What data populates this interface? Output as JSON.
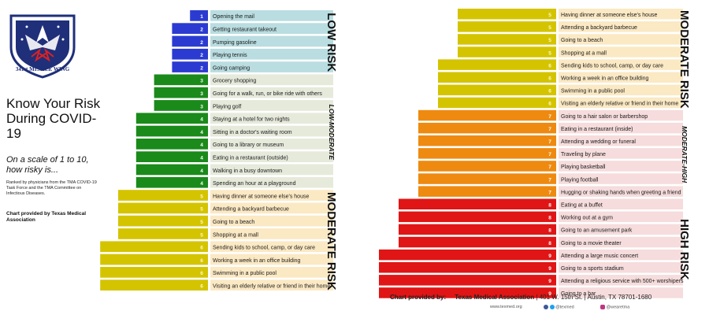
{
  "logo": {
    "text": "341st MISSILE WING",
    "icon": "shield-eagle-emblem"
  },
  "heading": {
    "title": "Know Your Risk During COVID-19",
    "subtitle": "On a scale of 1 to 10, how risky is...",
    "note": "Ranked by physicians from the TMA COVID-19 Task Force and the TMA Committee on Infectious Diseases.",
    "credit": "Chart provided by Texas Medical Association"
  },
  "footer": {
    "provided_by": "Chart provided by:",
    "org": "Texas Medical Association",
    "address": "| 401 W. 15th St. | Austin, TX 78701-1680",
    "website": "www.texmed.org",
    "twitter": "@texmed",
    "instagram": "@wearetma"
  },
  "colors": {
    "1": "#2b3bd1",
    "2": "#2b3bd1",
    "3": "#1a8a1a",
    "4": "#1a8a1a",
    "5": "#d4c400",
    "6": "#d4c400",
    "7": "#ee8a10",
    "8": "#e01515",
    "9": "#e01515"
  },
  "chart_data": [
    {
      "type": "bar",
      "panel": "left",
      "xlim": [
        0,
        10
      ],
      "bands": [
        {
          "name": "LOW RISK",
          "fill": "#b9dde0"
        },
        {
          "name": "LOW-MODERATE",
          "fill": "#e6eadb"
        },
        {
          "name": "MODERATE RISK",
          "fill": "#fbe9c4"
        }
      ],
      "categories": [
        "Opening the mail",
        "Getting restaurant takeout",
        "Pumping gasoline",
        "Playing tennis",
        "Going camping",
        "Grocery shopping",
        "Going for a walk, run, or bike ride with others",
        "Playing golf",
        "Staying at a hotel for two nights",
        "Sitting in a doctor's waiting room",
        "Going to a library or museum",
        "Eating in a restaurant (outside)",
        "Walking in a busy downtown",
        "Spending an hour at a playground",
        "Having dinner at someone else's house",
        "Attending a backyard barbecue",
        "Going to a beach",
        "Shopping at a mall",
        "Sending kids to school, camp, or day care",
        "Working a week in an office building",
        "Swimming in a public pool",
        "Visiting an elderly relative or friend in their home"
      ],
      "values": [
        1,
        2,
        2,
        2,
        2,
        3,
        3,
        3,
        4,
        4,
        4,
        4,
        4,
        4,
        5,
        5,
        5,
        5,
        6,
        6,
        6,
        6
      ],
      "band_index": [
        0,
        0,
        0,
        0,
        0,
        1,
        1,
        1,
        1,
        1,
        1,
        1,
        1,
        1,
        2,
        2,
        2,
        2,
        2,
        2,
        2,
        2
      ]
    },
    {
      "type": "bar",
      "panel": "right",
      "xlim": [
        0,
        10
      ],
      "bands": [
        {
          "name": "MODERATE RISK",
          "fill": "#fbe9c4"
        },
        {
          "name": "MODERATE-HIGH",
          "fill": "#f6dcdc"
        },
        {
          "name": "HIGH RISK",
          "fill": "#f6dcdc"
        }
      ],
      "categories": [
        "Having dinner at someone else's house",
        "Attending a backyard barbecue",
        "Going to a beach",
        "Shopping at a mall",
        "Sending kids to school, camp, or day care",
        "Working a week in an office building",
        "Swimming in a public pool",
        "Visiting an elderly relative or friend in their home",
        "Going to a hair salon or barbershop",
        "Eating in a restaurant (inside)",
        "Attending a wedding or funeral",
        "Traveling by plane",
        "Playing basketball",
        "Playing football",
        "Hugging or shaking hands when greeting a friend",
        "Eating at a buffet",
        "Working out at a gym",
        "Going to an amusement park",
        "Going to a movie theater",
        "Attending a large music concert",
        "Going to a sports stadium",
        "Attending a religious service with 500+ worshipers",
        "Going to a bar"
      ],
      "values": [
        5,
        5,
        5,
        5,
        6,
        6,
        6,
        6,
        7,
        7,
        7,
        7,
        7,
        7,
        7,
        8,
        8,
        8,
        8,
        9,
        9,
        9,
        9
      ],
      "band_index": [
        0,
        0,
        0,
        0,
        0,
        0,
        0,
        0,
        1,
        1,
        1,
        1,
        1,
        1,
        1,
        2,
        2,
        2,
        2,
        2,
        2,
        2,
        2
      ]
    }
  ]
}
